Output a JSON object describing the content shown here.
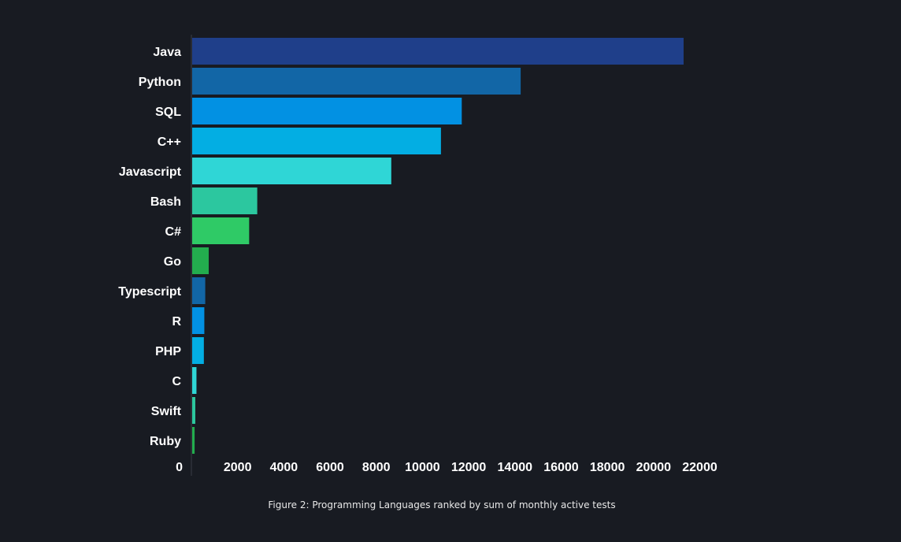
{
  "chart_data": {
    "type": "bar",
    "orientation": "horizontal",
    "categories": [
      "Java",
      "Python",
      "SQL",
      "C++",
      "Javascript",
      "Bash",
      "C#",
      "Go",
      "Typescript",
      "R",
      "PHP",
      "C",
      "Swift",
      "Ruby"
    ],
    "values": [
      21300,
      14250,
      11700,
      10800,
      8650,
      2850,
      2500,
      750,
      600,
      560,
      540,
      220,
      170,
      140
    ],
    "bar_colors": [
      "#1f3f8a",
      "#1266a6",
      "#0291e3",
      "#03aee3",
      "#2fd6d6",
      "#2cc79f",
      "#2fca66",
      "#23ad4e",
      "#1266a6",
      "#0291e3",
      "#03aee3",
      "#2fd6d6",
      "#2cc79f",
      "#23ad4e"
    ],
    "xlim": [
      0,
      22000
    ],
    "xticks": [
      0,
      2000,
      4000,
      6000,
      8000,
      10000,
      12000,
      14000,
      16000,
      18000,
      20000,
      22000
    ],
    "title": "",
    "xlabel": "",
    "ylabel": "",
    "grid": false,
    "legend": "none"
  },
  "caption": "Figure 2: Programming Languages ranked by sum of monthly active tests",
  "colors": {
    "background": "#181b22",
    "text": "#ffffff",
    "axis": "#3a3e47"
  }
}
